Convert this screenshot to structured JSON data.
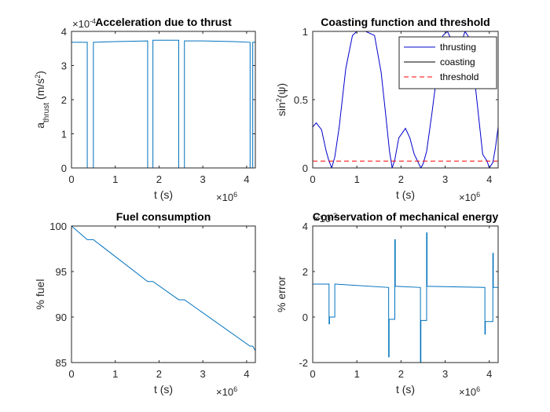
{
  "chart_data": [
    {
      "type": "line",
      "title": "Acceleration due to thrust",
      "xlabel": "t (s)",
      "ylabel": "a_thrust (m/s^2)",
      "ylabel_parts": {
        "base": "a",
        "sub": "thrust",
        "rest": " (m/s",
        "sup": "2",
        "end": ")"
      },
      "x_exponent": "×10^6",
      "x_exponent_parts": {
        "base": "×10",
        "sup": "6"
      },
      "y_exponent": "×10^-4",
      "y_exponent_parts": {
        "base": "×10",
        "sup": "-4"
      },
      "xlim": [
        0,
        4.2
      ],
      "ylim": [
        0,
        4
      ],
      "xticks": [
        0,
        1,
        2,
        3,
        4
      ],
      "yticks": [
        0,
        1,
        2,
        3,
        4
      ],
      "xtick_labels": [
        "0",
        "1",
        "2",
        "3",
        "4"
      ],
      "ytick_labels": [
        "0",
        "1",
        "2",
        "3",
        "4"
      ],
      "grid": false,
      "series": [
        {
          "color": "#0072BD",
          "x": [
            0,
            0.36,
            0.36,
            0.5,
            0.5,
            1.0,
            1.74,
            1.74,
            1.86,
            1.86,
            2.45,
            2.45,
            2.58,
            2.58,
            3.0,
            3.7,
            4.08,
            4.08,
            4.14,
            4.14,
            4.2
          ],
          "y": [
            3.68,
            3.68,
            0,
            0,
            3.68,
            3.7,
            3.72,
            0,
            0,
            3.74,
            3.74,
            0,
            0,
            3.72,
            3.72,
            3.7,
            3.68,
            0,
            0,
            3.68,
            3.68
          ]
        }
      ]
    },
    {
      "type": "line",
      "title": "Coasting function and threshold",
      "xlabel": "t (s)",
      "ylabel": "sin^2(ψ)",
      "ylabel_parts": {
        "base": "sin",
        "sup": "2",
        "end": "(ψ)"
      },
      "x_exponent": "×10^6",
      "x_exponent_parts": {
        "base": "×10",
        "sup": "6"
      },
      "xlim": [
        0,
        4.2
      ],
      "ylim": [
        0,
        1
      ],
      "xticks": [
        0,
        1,
        2,
        3,
        4
      ],
      "yticks": [
        0,
        0.5,
        1
      ],
      "xtick_labels": [
        "0",
        "1",
        "2",
        "3",
        "4"
      ],
      "ytick_labels": [
        "0",
        "0.5",
        "1"
      ],
      "grid": false,
      "legend": {
        "position": "top-right",
        "entries": [
          {
            "label": "thrusting",
            "color": "#0000CC",
            "style": "solid"
          },
          {
            "label": "coasting",
            "color": "#000000",
            "style": "solid"
          },
          {
            "label": "threshold",
            "color": "#FF0000",
            "style": "dashed"
          }
        ]
      },
      "series": [
        {
          "label": "thrusting",
          "color": "#0000CC",
          "x": [
            0,
            0.08,
            0.2,
            0.3,
            0.36,
            0.43,
            0.5,
            0.6,
            0.75,
            0.9,
            1.0,
            1.2,
            1.4,
            1.55,
            1.65,
            1.74,
            1.8,
            1.86,
            1.95,
            2.1,
            2.2,
            2.3,
            2.45,
            2.5,
            2.58,
            2.7,
            2.85,
            2.95,
            3.05,
            3.2,
            3.28,
            3.35,
            3.45,
            3.55,
            3.65,
            3.75,
            3.85,
            3.95,
            4.0,
            4.08,
            4.14,
            4.2
          ],
          "y": [
            0.3,
            0.33,
            0.28,
            0.13,
            0.06,
            0.0,
            0.08,
            0.3,
            0.73,
            0.97,
            1.0,
            1.0,
            0.97,
            0.7,
            0.4,
            0.12,
            0.0,
            0.06,
            0.22,
            0.29,
            0.22,
            0.1,
            0.0,
            0.03,
            0.12,
            0.4,
            0.78,
            0.97,
            1.0,
            0.9,
            0.85,
            0.9,
            1.0,
            0.95,
            0.7,
            0.4,
            0.1,
            0.05,
            0.0,
            0.04,
            0.15,
            0.3
          ]
        },
        {
          "label": "threshold",
          "color": "#FF0000",
          "dashed": true,
          "x": [
            0,
            4.2
          ],
          "y": [
            0.05,
            0.05
          ]
        }
      ]
    },
    {
      "type": "line",
      "title": "Fuel consumption",
      "xlabel": "t (s)",
      "ylabel": "% fuel",
      "x_exponent": "×10^6",
      "x_exponent_parts": {
        "base": "×10",
        "sup": "6"
      },
      "xlim": [
        0,
        4.2
      ],
      "ylim": [
        85,
        100
      ],
      "xticks": [
        0,
        1,
        2,
        3,
        4
      ],
      "yticks": [
        85,
        90,
        95,
        100
      ],
      "xtick_labels": [
        "0",
        "1",
        "2",
        "3",
        "4"
      ],
      "ytick_labels": [
        "85",
        "90",
        "95",
        "100"
      ],
      "grid": false,
      "series": [
        {
          "color": "#0072BD",
          "x": [
            0,
            0.36,
            0.5,
            1.74,
            1.86,
            2.45,
            2.58,
            4.08,
            4.14,
            4.2
          ],
          "y": [
            100,
            98.5,
            98.5,
            93.9,
            93.9,
            91.9,
            91.9,
            86.8,
            86.8,
            86.3
          ]
        }
      ]
    },
    {
      "type": "line",
      "title": "Conservation of mechanical energy",
      "xlabel": "t (s)",
      "ylabel": "% error",
      "x_exponent": "×10^6",
      "x_exponent_parts": {
        "base": "×10",
        "sup": "6"
      },
      "y_exponent": "×10^-3",
      "y_exponent_parts": {
        "base": "×10",
        "sup": "-3"
      },
      "xlim": [
        0,
        4.2
      ],
      "ylim": [
        -2,
        4
      ],
      "xticks": [
        0,
        1,
        2,
        3,
        4
      ],
      "yticks": [
        -2,
        0,
        2,
        4
      ],
      "xtick_labels": [
        "0",
        "1",
        "2",
        "3",
        "4"
      ],
      "ytick_labels": [
        "-2",
        "0",
        "2",
        "4"
      ],
      "grid": false,
      "series": [
        {
          "color": "#0072BD",
          "x": [
            0,
            0.36,
            0.37,
            0.37,
            0.38,
            0.38,
            0.5,
            0.5,
            0.51,
            0.51,
            1.72,
            1.72,
            1.73,
            1.73,
            1.86,
            1.86,
            1.87,
            1.87,
            1.9,
            1.9,
            2.44,
            2.44,
            2.45,
            2.45,
            2.58,
            2.58,
            2.59,
            2.59,
            2.62,
            2.62,
            3.9,
            3.9,
            3.91,
            3.91,
            4.08,
            4.08,
            4.09,
            4.09,
            4.12,
            4.12,
            4.2
          ],
          "y": [
            1.45,
            1.45,
            1.45,
            -0.3,
            -0.3,
            0.0,
            0.0,
            1.45,
            1.45,
            1.45,
            1.3,
            -1.75,
            -1.75,
            -0.1,
            -0.1,
            3.4,
            3.4,
            1.35,
            1.35,
            1.35,
            1.3,
            -2.0,
            -2.0,
            -0.15,
            -0.15,
            3.7,
            3.7,
            1.35,
            1.35,
            1.35,
            1.3,
            -0.75,
            -0.75,
            -0.2,
            -0.2,
            2.8,
            2.8,
            1.3,
            1.3,
            1.3,
            1.3
          ]
        }
      ]
    }
  ]
}
